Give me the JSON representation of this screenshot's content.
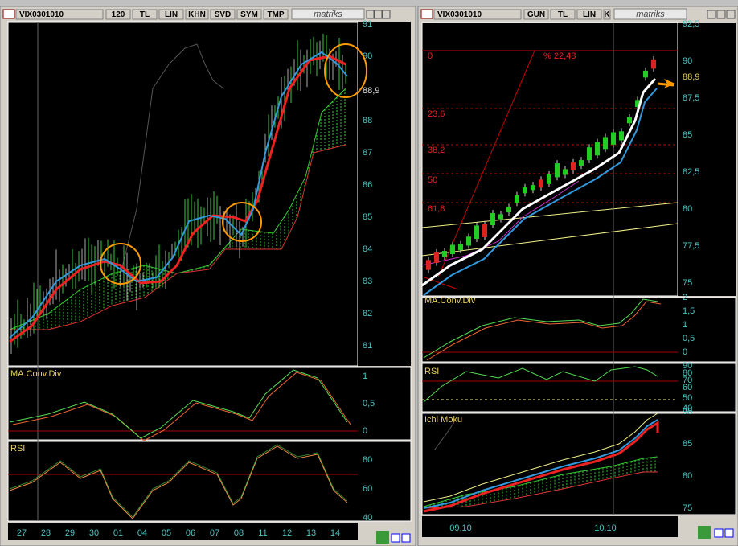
{
  "left": {
    "toolbar": {
      "symbol": "VIX0301010",
      "buttons": [
        "120",
        "TL",
        "LIN",
        "KHN",
        "SVD",
        "SYM",
        "TMP"
      ],
      "logo": "matriks"
    },
    "price_axis": [
      "91",
      "90",
      "88",
      "87",
      "86",
      "85",
      "84",
      "83",
      "82",
      "81"
    ],
    "last_price": "88,9",
    "macd": {
      "title": "MA.Conv.Div",
      "axis": [
        "1",
        "0,5",
        "0"
      ]
    },
    "rsi": {
      "title": "RSI",
      "axis": [
        "80",
        "60",
        "40"
      ]
    },
    "dates": [
      "27",
      "28",
      "29",
      "30",
      "01",
      "04",
      "05",
      "06",
      "07",
      "08",
      "11",
      "12",
      "13",
      "14"
    ]
  },
  "right": {
    "toolbar": {
      "symbol": "VIX0301010",
      "buttons": [
        "GUN",
        "TL",
        "LIN",
        "K"
      ],
      "logo": "matriks"
    },
    "price_axis": [
      "92,5",
      "90",
      "87,5",
      "85",
      "82,5",
      "80",
      "77,5",
      "75"
    ],
    "last_price": "88,9",
    "fib": {
      "levels": [
        "0",
        "23,6",
        "38,2",
        "50",
        "61,8"
      ],
      "range": "% 22,48"
    },
    "macd": {
      "title": "MA.Conv.Div",
      "axis": [
        "2",
        "1,5",
        "1",
        "0,5",
        "0"
      ]
    },
    "rsi": {
      "title": "RSI",
      "axis": [
        "90",
        "80",
        "70",
        "60",
        "50",
        "40"
      ]
    },
    "ichimoku": {
      "title": "Ichi Moku",
      "axis": [
        "90",
        "85",
        "80",
        "75"
      ]
    },
    "dates": [
      "09.10",
      "10.10"
    ]
  }
}
